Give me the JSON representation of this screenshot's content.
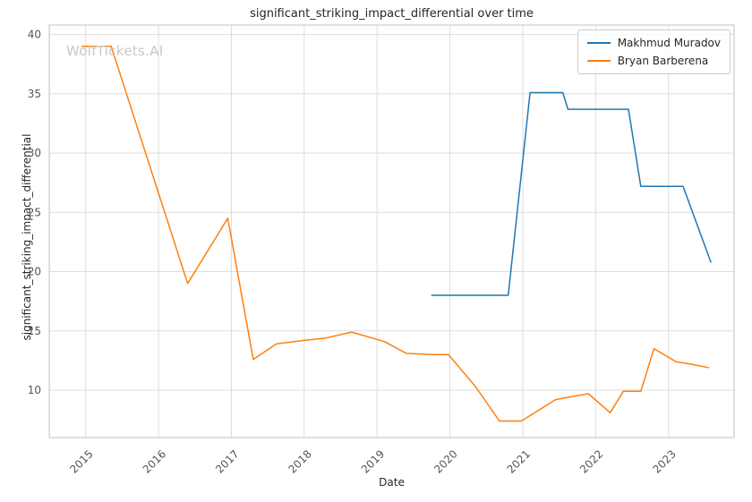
{
  "chart_data": {
    "type": "line",
    "title": "significant_striking_impact_differential over time",
    "xlabel": "Date",
    "ylabel": "significant_striking_impact_differential",
    "watermark": "WolfTickets.AI",
    "xlim": [
      2014.5,
      2023.9
    ],
    "ylim": [
      6.0,
      40.8
    ],
    "xticks": [
      2015,
      2016,
      2017,
      2018,
      2019,
      2020,
      2021,
      2022,
      2023
    ],
    "yticks": [
      10,
      15,
      20,
      25,
      30,
      35,
      40
    ],
    "grid": true,
    "legend_position": "upper right",
    "colors": {
      "grid": "#dddddd",
      "spine": "#cccccc",
      "tick_text": "#555555",
      "title_text": "#262626",
      "watermark": "#c8c8c8"
    },
    "series": [
      {
        "name": "Makhmud Muradov",
        "color": "#1f77b4",
        "x": [
          2019.75,
          2020.35,
          2020.8,
          2021.1,
          2021.35,
          2021.55,
          2021.62,
          2022.0,
          2022.45,
          2022.62,
          2022.9,
          2023.2,
          2023.58
        ],
        "y": [
          18.0,
          18.0,
          18.0,
          35.1,
          35.1,
          35.1,
          33.7,
          33.7,
          33.7,
          27.2,
          27.2,
          27.2,
          20.8
        ]
      },
      {
        "name": "Bryan Barberena",
        "color": "#ff7f0e",
        "x": [
          2014.95,
          2015.35,
          2016.4,
          2016.95,
          2017.3,
          2017.62,
          2018.0,
          2018.3,
          2018.65,
          2019.1,
          2019.4,
          2019.75,
          2019.98,
          2020.35,
          2020.68,
          2020.98,
          2021.45,
          2021.62,
          2021.9,
          2022.2,
          2022.38,
          2022.62,
          2022.8,
          2023.1,
          2023.3,
          2023.55
        ],
        "y": [
          39.0,
          39.0,
          19.0,
          24.5,
          12.6,
          13.9,
          14.2,
          14.4,
          14.9,
          14.1,
          13.1,
          13.0,
          13.0,
          10.3,
          7.4,
          7.4,
          9.2,
          9.4,
          9.7,
          8.1,
          9.9,
          9.9,
          13.5,
          12.4,
          12.2,
          11.9
        ]
      }
    ]
  }
}
